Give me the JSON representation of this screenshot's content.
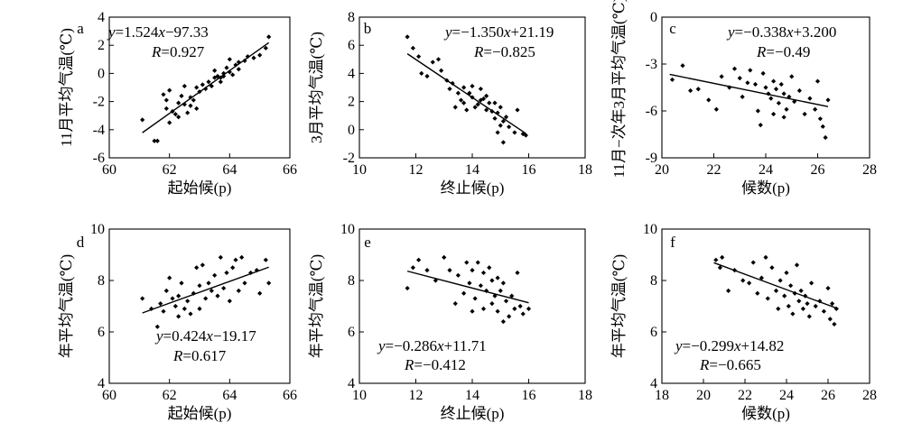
{
  "chart_data": [
    {
      "type": "scatter",
      "panel": "a",
      "xlabel": "起始候(p)",
      "ylabel": "11月平均气温(℃)",
      "xlim": [
        60,
        66
      ],
      "ylim": [
        -6,
        4
      ],
      "xticks": [
        60,
        62,
        64,
        66
      ],
      "yticks": [
        -6,
        -4,
        -2,
        0,
        2,
        4
      ],
      "equation": "y=1.524x−97.33",
      "r": "R=0.927",
      "fit": {
        "slope": 1.524,
        "intercept": -97.33,
        "x_range": [
          61.1,
          65.3
        ]
      },
      "points": [
        [
          61.1,
          -3.3
        ],
        [
          61.5,
          -4.8
        ],
        [
          61.6,
          -4.8
        ],
        [
          61.8,
          -1.5
        ],
        [
          61.9,
          -1.9
        ],
        [
          61.9,
          -2.5
        ],
        [
          62.0,
          -1.2
        ],
        [
          62.0,
          -3.5
        ],
        [
          62.1,
          -2.7
        ],
        [
          62.2,
          -2.9
        ],
        [
          62.3,
          -2.1
        ],
        [
          62.3,
          -3.1
        ],
        [
          62.4,
          -1.6
        ],
        [
          62.5,
          -0.9
        ],
        [
          62.5,
          -2.2
        ],
        [
          62.6,
          -2.8
        ],
        [
          62.7,
          -2.3
        ],
        [
          62.7,
          -1.7
        ],
        [
          62.8,
          -1.9
        ],
        [
          62.9,
          -2.5
        ],
        [
          62.9,
          -1.0
        ],
        [
          63.0,
          -1.3
        ],
        [
          63.1,
          -0.8
        ],
        [
          63.2,
          -1.1
        ],
        [
          63.3,
          -0.6
        ],
        [
          63.4,
          -0.9
        ],
        [
          63.5,
          -0.3
        ],
        [
          63.5,
          0.2
        ],
        [
          63.6,
          -0.2
        ],
        [
          63.7,
          -0.3
        ],
        [
          63.7,
          -0.6
        ],
        [
          63.8,
          0.0
        ],
        [
          63.8,
          -0.2
        ],
        [
          63.9,
          0.4
        ],
        [
          64.0,
          0.1
        ],
        [
          64.0,
          1.0
        ],
        [
          64.1,
          -0.1
        ],
        [
          64.2,
          0.6
        ],
        [
          64.3,
          0.8
        ],
        [
          64.3,
          0.3
        ],
        [
          64.5,
          0.9
        ],
        [
          64.6,
          1.2
        ],
        [
          64.8,
          1.1
        ],
        [
          65.0,
          1.3
        ],
        [
          65.2,
          1.8
        ],
        [
          65.3,
          2.6
        ]
      ]
    },
    {
      "type": "scatter",
      "panel": "b",
      "xlabel": "终止候(p)",
      "ylabel": "3月平均气温(℃)",
      "xlim": [
        10,
        18
      ],
      "ylim": [
        -2,
        8
      ],
      "xticks": [
        10,
        12,
        14,
        16,
        18
      ],
      "yticks": [
        -2,
        0,
        2,
        4,
        6,
        8
      ],
      "equation": "y=−1.350x+21.19",
      "r": "R=−0.825",
      "fit": {
        "slope": -1.35,
        "intercept": 21.19,
        "x_range": [
          11.7,
          15.9
        ]
      },
      "points": [
        [
          11.7,
          6.6
        ],
        [
          11.9,
          5.8
        ],
        [
          12.1,
          5.2
        ],
        [
          12.2,
          4.0
        ],
        [
          12.4,
          3.8
        ],
        [
          12.6,
          4.8
        ],
        [
          12.8,
          5.0
        ],
        [
          12.9,
          4.2
        ],
        [
          13.1,
          3.5
        ],
        [
          13.2,
          2.9
        ],
        [
          13.3,
          3.3
        ],
        [
          13.4,
          1.6
        ],
        [
          13.5,
          2.6
        ],
        [
          13.6,
          2.1
        ],
        [
          13.7,
          3.0
        ],
        [
          13.7,
          1.9
        ],
        [
          13.8,
          1.4
        ],
        [
          13.9,
          2.6
        ],
        [
          14.0,
          2.3
        ],
        [
          14.0,
          3.1
        ],
        [
          14.1,
          1.6
        ],
        [
          14.2,
          1.8
        ],
        [
          14.3,
          2.1
        ],
        [
          14.3,
          2.9
        ],
        [
          14.4,
          2.2
        ],
        [
          14.5,
          1.4
        ],
        [
          14.5,
          2.4
        ],
        [
          14.6,
          1.9
        ],
        [
          14.7,
          1.3
        ],
        [
          14.8,
          0.8
        ],
        [
          14.8,
          1.9
        ],
        [
          14.9,
          1.2
        ],
        [
          14.9,
          -0.2
        ],
        [
          15.0,
          0.3
        ],
        [
          15.0,
          1.6
        ],
        [
          15.1,
          0.6
        ],
        [
          15.1,
          -0.9
        ],
        [
          15.2,
          0.9
        ],
        [
          15.3,
          0.2
        ],
        [
          15.5,
          -0.2
        ],
        [
          15.6,
          1.4
        ],
        [
          15.8,
          -0.3
        ],
        [
          15.9,
          -0.4
        ]
      ]
    },
    {
      "type": "scatter",
      "panel": "c",
      "xlabel": "候数(p)",
      "ylabel": "11月−次年3月平均气温(℃)",
      "xlim": [
        20,
        28
      ],
      "ylim": [
        -9,
        0
      ],
      "xticks": [
        20,
        22,
        24,
        26,
        28
      ],
      "yticks": [
        -9,
        -6,
        -3,
        0
      ],
      "equation": "y=−0.338x+3.200",
      "r": "R=−0.49",
      "fit": {
        "slope": -0.338,
        "intercept": 3.2,
        "x_range": [
          20.3,
          26.4
        ]
      },
      "points": [
        [
          20.4,
          -4.0
        ],
        [
          20.8,
          -3.1
        ],
        [
          21.1,
          -4.7
        ],
        [
          21.4,
          -4.6
        ],
        [
          21.8,
          -5.3
        ],
        [
          22.1,
          -5.9
        ],
        [
          22.3,
          -3.8
        ],
        [
          22.6,
          -4.5
        ],
        [
          22.8,
          -3.3
        ],
        [
          23.0,
          -3.9
        ],
        [
          23.1,
          -5.1
        ],
        [
          23.3,
          -4.2
        ],
        [
          23.4,
          -3.4
        ],
        [
          23.6,
          -4.3
        ],
        [
          23.7,
          -6.0
        ],
        [
          23.8,
          -6.9
        ],
        [
          23.9,
          -3.6
        ],
        [
          24.0,
          -4.5
        ],
        [
          24.1,
          -4.9
        ],
        [
          24.2,
          -5.2
        ],
        [
          24.3,
          -4.1
        ],
        [
          24.3,
          -6.2
        ],
        [
          24.4,
          -4.6
        ],
        [
          24.5,
          -5.5
        ],
        [
          24.6,
          -4.3
        ],
        [
          24.7,
          -6.4
        ],
        [
          24.7,
          -4.9
        ],
        [
          24.8,
          -5.9
        ],
        [
          24.9,
          -5.1
        ],
        [
          25.0,
          -3.8
        ],
        [
          25.1,
          -5.4
        ],
        [
          25.3,
          -4.7
        ],
        [
          25.5,
          -6.2
        ],
        [
          25.7,
          -5.2
        ],
        [
          25.9,
          -5.9
        ],
        [
          26.0,
          -4.1
        ],
        [
          26.1,
          -6.5
        ],
        [
          26.2,
          -7.0
        ],
        [
          26.3,
          -7.7
        ],
        [
          26.4,
          -5.3
        ]
      ]
    },
    {
      "type": "scatter",
      "panel": "d",
      "xlabel": "起始候(p)",
      "ylabel": "年平均气温(℃)",
      "xlim": [
        60,
        66
      ],
      "ylim": [
        4,
        10
      ],
      "xticks": [
        60,
        62,
        64,
        66
      ],
      "yticks": [
        4,
        6,
        8,
        10
      ],
      "equation": "y=0.424x−19.17",
      "r": "R=0.617",
      "fit": {
        "slope": 0.424,
        "intercept": -19.17,
        "x_range": [
          61.1,
          65.3
        ]
      },
      "points": [
        [
          61.1,
          7.3
        ],
        [
          61.4,
          6.9
        ],
        [
          61.6,
          6.2
        ],
        [
          61.7,
          7.1
        ],
        [
          61.8,
          6.8
        ],
        [
          61.9,
          7.6
        ],
        [
          62.0,
          8.1
        ],
        [
          62.1,
          7.3
        ],
        [
          62.2,
          7.0
        ],
        [
          62.3,
          7.4
        ],
        [
          62.3,
          6.6
        ],
        [
          62.4,
          7.9
        ],
        [
          62.5,
          6.9
        ],
        [
          62.6,
          7.2
        ],
        [
          62.7,
          6.7
        ],
        [
          62.8,
          7.5
        ],
        [
          62.9,
          8.5
        ],
        [
          63.0,
          7.8
        ],
        [
          63.0,
          6.9
        ],
        [
          63.1,
          8.6
        ],
        [
          63.2,
          7.3
        ],
        [
          63.3,
          7.9
        ],
        [
          63.4,
          7.6
        ],
        [
          63.5,
          8.2
        ],
        [
          63.6,
          7.4
        ],
        [
          63.7,
          8.9
        ],
        [
          63.8,
          7.7
        ],
        [
          63.9,
          8.3
        ],
        [
          64.0,
          7.2
        ],
        [
          64.1,
          8.5
        ],
        [
          64.2,
          8.8
        ],
        [
          64.3,
          7.6
        ],
        [
          64.4,
          8.9
        ],
        [
          64.5,
          7.9
        ],
        [
          64.7,
          8.3
        ],
        [
          64.9,
          8.4
        ],
        [
          65.0,
          7.5
        ],
        [
          65.2,
          8.8
        ],
        [
          65.3,
          7.9
        ]
      ]
    },
    {
      "type": "scatter",
      "panel": "e",
      "xlabel": "终止候(p)",
      "ylabel": "年平均气温(℃)",
      "xlim": [
        10,
        18
      ],
      "ylim": [
        4,
        10
      ],
      "xticks": [
        10,
        12,
        14,
        16,
        18
      ],
      "yticks": [
        4,
        6,
        8,
        10
      ],
      "equation": "y=−0.286x+11.71",
      "r": "R=−0.412",
      "fit": {
        "slope": -0.286,
        "intercept": 11.71,
        "x_range": [
          11.7,
          16.0
        ]
      },
      "points": [
        [
          11.7,
          7.7
        ],
        [
          11.9,
          8.5
        ],
        [
          12.1,
          8.8
        ],
        [
          12.4,
          8.4
        ],
        [
          12.7,
          8.0
        ],
        [
          13.0,
          8.9
        ],
        [
          13.2,
          8.4
        ],
        [
          13.4,
          7.1
        ],
        [
          13.5,
          8.2
        ],
        [
          13.7,
          7.5
        ],
        [
          13.8,
          8.7
        ],
        [
          13.9,
          7.9
        ],
        [
          14.0,
          6.8
        ],
        [
          14.0,
          8.4
        ],
        [
          14.1,
          7.3
        ],
        [
          14.2,
          8.7
        ],
        [
          14.3,
          7.8
        ],
        [
          14.4,
          6.9
        ],
        [
          14.4,
          8.3
        ],
        [
          14.5,
          7.6
        ],
        [
          14.6,
          8.5
        ],
        [
          14.7,
          7.1
        ],
        [
          14.7,
          8.0
        ],
        [
          14.8,
          7.4
        ],
        [
          14.9,
          6.8
        ],
        [
          14.9,
          8.1
        ],
        [
          15.0,
          7.6
        ],
        [
          15.1,
          6.4
        ],
        [
          15.1,
          7.9
        ],
        [
          15.2,
          7.2
        ],
        [
          15.3,
          6.6
        ],
        [
          15.4,
          7.4
        ],
        [
          15.5,
          6.9
        ],
        [
          15.6,
          8.3
        ],
        [
          15.7,
          7.0
        ],
        [
          15.8,
          6.7
        ],
        [
          16.0,
          6.9
        ]
      ]
    },
    {
      "type": "scatter",
      "panel": "f",
      "xlabel": "候数(p)",
      "ylabel": "年平均气温(℃)",
      "xlim": [
        18,
        28
      ],
      "ylim": [
        4,
        10
      ],
      "xticks": [
        18,
        20,
        22,
        24,
        26,
        28
      ],
      "yticks": [
        4,
        6,
        8,
        10
      ],
      "equation": "y=−0.299x+14.82",
      "r": "R=−0.665",
      "fit": {
        "slope": -0.299,
        "intercept": 14.82,
        "x_range": [
          20.5,
          26.5
        ]
      },
      "points": [
        [
          20.6,
          8.8
        ],
        [
          20.8,
          8.5
        ],
        [
          20.9,
          8.9
        ],
        [
          21.2,
          7.6
        ],
        [
          21.5,
          8.4
        ],
        [
          21.9,
          8.0
        ],
        [
          22.2,
          7.9
        ],
        [
          22.4,
          8.7
        ],
        [
          22.6,
          7.5
        ],
        [
          22.8,
          8.1
        ],
        [
          23.0,
          8.9
        ],
        [
          23.1,
          7.3
        ],
        [
          23.3,
          8.5
        ],
        [
          23.5,
          7.6
        ],
        [
          23.6,
          6.9
        ],
        [
          23.7,
          8.0
        ],
        [
          23.9,
          7.4
        ],
        [
          24.0,
          8.3
        ],
        [
          24.1,
          7.0
        ],
        [
          24.2,
          7.8
        ],
        [
          24.3,
          6.7
        ],
        [
          24.4,
          7.5
        ],
        [
          24.5,
          8.6
        ],
        [
          24.6,
          7.2
        ],
        [
          24.7,
          7.6
        ],
        [
          24.8,
          6.9
        ],
        [
          24.9,
          7.4
        ],
        [
          25.0,
          7.1
        ],
        [
          25.1,
          6.6
        ],
        [
          25.2,
          7.9
        ],
        [
          25.4,
          7.0
        ],
        [
          25.6,
          7.2
        ],
        [
          25.8,
          6.8
        ],
        [
          26.0,
          7.7
        ],
        [
          26.1,
          6.5
        ],
        [
          26.2,
          7.1
        ],
        [
          26.3,
          6.3
        ],
        [
          26.4,
          6.9
        ]
      ]
    }
  ]
}
